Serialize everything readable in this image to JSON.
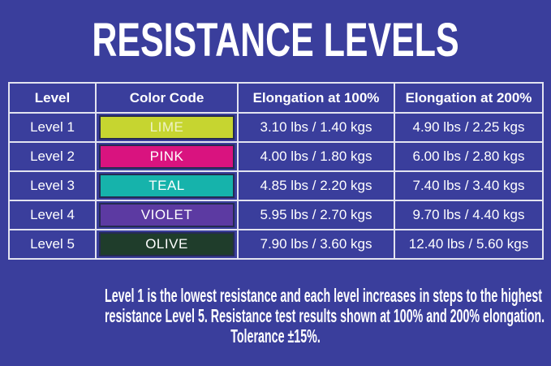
{
  "colors": {
    "background": "#3A3E9C",
    "grid_border": "#E2E3F0",
    "swatch_border": "#252B52",
    "text": "#FFFFFF"
  },
  "chart_data": {
    "type": "table",
    "title": "RESISTANCE LEVELS",
    "columns": [
      "Level",
      "Color Code",
      "Elongation at 100%",
      "Elongation at 200%"
    ],
    "rows": [
      {
        "level": "Level 1",
        "color_name": "LIME",
        "color_hex": "#C6D530",
        "label_color": "#EFF3C6",
        "e100": "3.10 lbs / 1.40 kgs",
        "e200": "4.90 lbs / 2.25 kgs"
      },
      {
        "level": "Level 2",
        "color_name": "PINK",
        "color_hex": "#D9137F",
        "label_color": "#FFFFFF",
        "e100": "4.00 lbs / 1.80 kgs",
        "e200": "6.00 lbs / 2.80 kgs"
      },
      {
        "level": "Level 3",
        "color_name": "TEAL",
        "color_hex": "#16B3AB",
        "label_color": "#FFFFFF",
        "e100": "4.85 lbs / 2.20 kgs",
        "e200": "7.40 lbs / 3.40 kgs"
      },
      {
        "level": "Level 4",
        "color_name": "VIOLET",
        "color_hex": "#5C3AA2",
        "label_color": "#FFFFFF",
        "e100": "5.95 lbs / 2.70 kgs",
        "e200": "9.70 lbs / 4.40 kgs"
      },
      {
        "level": "Level 5",
        "color_name": "OLIVE",
        "color_hex": "#1F3D2B",
        "label_color": "#FFFFFF",
        "e100": "7.90 lbs / 3.60 kgs",
        "e200": "12.40 lbs / 5.60 kgs"
      }
    ],
    "footnote_lines": [
      "Level 1 is the lowest resistance and each level increases in steps to the highest",
      "resistance Level 5. Resistance test results shown at 100%  and 200% elongation.",
      "Tolerance ±15%."
    ]
  }
}
